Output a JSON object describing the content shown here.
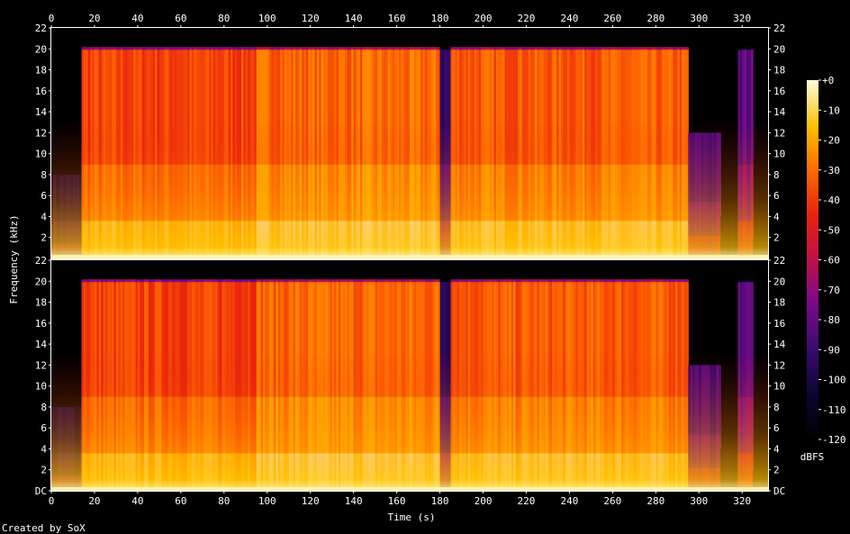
{
  "chart_data": {
    "type": "heatmap",
    "title": "",
    "xlabel": "Time (s)",
    "ylabel": "Frequency (kHz)",
    "footer": "Created by SoX",
    "xlim": [
      0,
      330
    ],
    "x_ticks": [
      "0",
      "20",
      "40",
      "60",
      "80",
      "100",
      "120",
      "140",
      "160",
      "180",
      "200",
      "220",
      "240",
      "260",
      "280",
      "300",
      "320"
    ],
    "ylim_khz": [
      0,
      22
    ],
    "y_ticks_top": [
      "22",
      "20",
      "18",
      "16",
      "14",
      "12",
      "10",
      "8",
      "6",
      "4",
      "2"
    ],
    "y_ticks_bottom": [
      "22",
      "20",
      "18",
      "16",
      "14",
      "12",
      "10",
      "8",
      "6",
      "4",
      "2",
      "DC"
    ],
    "channels": 2,
    "colorbar": {
      "label": "dBFS",
      "range": [
        -120,
        0
      ],
      "ticks": [
        "+0",
        "-10",
        "-20",
        "-30",
        "-40",
        "-50",
        "-60",
        "-70",
        "-80",
        "-90",
        "-100",
        "-110",
        "-120"
      ]
    },
    "segments": [
      {
        "start": 0,
        "end": 14,
        "level": 0.15,
        "cutoff_khz": 8
      },
      {
        "start": 14,
        "end": 95,
        "level": 0.7,
        "cutoff_khz": 20
      },
      {
        "start": 95,
        "end": 180,
        "level": 0.76,
        "cutoff_khz": 20
      },
      {
        "start": 180,
        "end": 185,
        "level": 0.25,
        "cutoff_khz": 20
      },
      {
        "start": 185,
        "end": 295,
        "level": 0.74,
        "cutoff_khz": 20
      },
      {
        "start": 295,
        "end": 310,
        "level": 0.3,
        "cutoff_khz": 12
      },
      {
        "start": 310,
        "end": 318,
        "level": 0.05,
        "cutoff_khz": 4
      },
      {
        "start": 318,
        "end": 325,
        "level": 0.35,
        "cutoff_khz": 20
      },
      {
        "start": 325,
        "end": 332,
        "level": 0.05,
        "cutoff_khz": 2
      }
    ]
  }
}
